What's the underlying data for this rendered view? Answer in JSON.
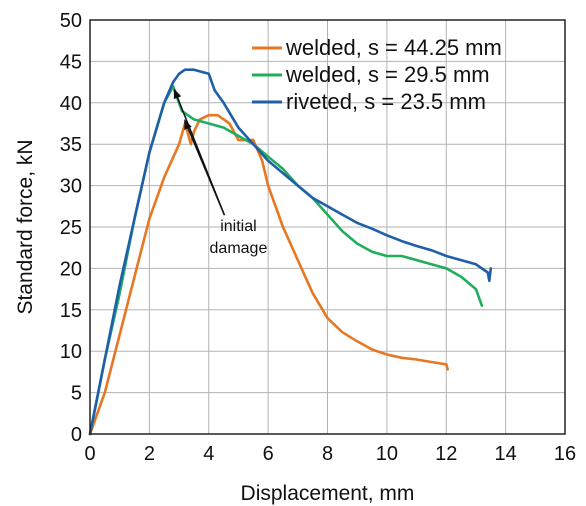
{
  "chart_data": {
    "type": "line",
    "xlabel": "Displacement, mm",
    "ylabel": "Standard force, kN",
    "xlim": [
      0,
      16
    ],
    "ylim": [
      0,
      50
    ],
    "xticks": [
      0,
      2,
      4,
      6,
      8,
      10,
      12,
      14,
      16
    ],
    "yticks": [
      0,
      5,
      10,
      15,
      20,
      25,
      30,
      35,
      40,
      45,
      50
    ],
    "grid": true,
    "legend_position": "top-right",
    "series": [
      {
        "name": "welded, s = 44.25 mm",
        "color": "#e87722",
        "x": [
          0,
          0.5,
          1,
          1.5,
          2,
          2.5,
          3,
          3.2,
          3.4,
          3.5,
          3.7,
          4,
          4.3,
          4.7,
          5,
          5.5,
          5.8,
          6,
          6.5,
          7,
          7.5,
          8,
          8.5,
          9,
          9.5,
          10,
          10.5,
          11,
          11.5,
          12,
          12.05
        ],
        "y": [
          0,
          5,
          12,
          19,
          26,
          31,
          35,
          37.5,
          35,
          36.5,
          38,
          38.5,
          38.5,
          37.5,
          35.5,
          35.5,
          33,
          30,
          25,
          21,
          17,
          14,
          12.3,
          11.2,
          10.2,
          9.6,
          9.2,
          9,
          8.7,
          8.4,
          7.8
        ]
      },
      {
        "name": "welded, s = 29.5 mm",
        "color": "#1fae5b",
        "x": [
          0,
          0.5,
          1,
          1.5,
          2,
          2.5,
          2.8,
          3.1,
          3.5,
          4,
          4.5,
          5,
          5.5,
          6,
          6.5,
          7,
          7.5,
          8,
          8.5,
          9,
          9.5,
          10,
          10.5,
          11,
          11.5,
          12,
          12.5,
          13,
          13.2
        ],
        "y": [
          0,
          9,
          17,
          26,
          34,
          40,
          42,
          39,
          38,
          37.5,
          37,
          36,
          35,
          33.5,
          32,
          30,
          28.5,
          26.5,
          24.5,
          23,
          22,
          21.5,
          21.5,
          21,
          20.5,
          20,
          19,
          17.5,
          15.5
        ]
      },
      {
        "name": "riveted, s = 23.5 mm",
        "color": "#1f5faa",
        "x": [
          0,
          0.5,
          1,
          1.5,
          2,
          2.5,
          2.8,
          3,
          3.2,
          3.5,
          4,
          4.2,
          4.5,
          5,
          5.5,
          6,
          6.5,
          7,
          7.5,
          8,
          8.5,
          9,
          9.5,
          10,
          10.5,
          11,
          11.5,
          12,
          12.5,
          13,
          13.4,
          13.45,
          13.5
        ],
        "y": [
          0,
          9,
          18,
          26,
          34,
          40,
          42.5,
          43.5,
          44,
          44,
          43.5,
          41.5,
          40,
          37,
          35,
          33,
          31.5,
          30,
          28.5,
          27.5,
          26.5,
          25.5,
          24.8,
          24,
          23.3,
          22.7,
          22.2,
          21.5,
          21,
          20.5,
          19.5,
          18.5,
          20
        ]
      }
    ],
    "annotations": [
      {
        "text_lines": [
          "initial",
          "damage"
        ],
        "text_at": [
          5.0,
          24.5
        ],
        "arrows_to": [
          [
            2.85,
            41.5
          ],
          [
            3.2,
            37.8
          ]
        ]
      }
    ]
  }
}
